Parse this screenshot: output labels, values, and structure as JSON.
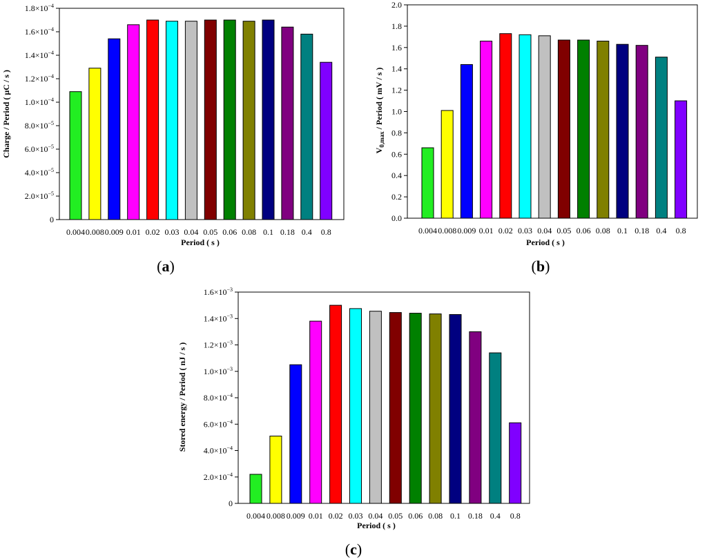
{
  "colors": [
    "#22ee22",
    "#ffff00",
    "#0000ff",
    "#ff00ff",
    "#ff0000",
    "#00ffff",
    "#c0c0c0",
    "#800000",
    "#008000",
    "#808000",
    "#000080",
    "#800080",
    "#008080",
    "#8000ff"
  ],
  "chart_data": [
    {
      "type": "bar",
      "panel_label": "a",
      "categories": [
        "0.004",
        "0.008",
        "0.009",
        "0.01",
        "0.02",
        "0.03",
        "0.04",
        "0.05",
        "0.06",
        "0.08",
        "0.1",
        "0.18",
        "0.4",
        "0.8"
      ],
      "values": [
        0.000109,
        0.000129,
        0.000154,
        0.000166,
        0.00017,
        0.000169,
        0.000169,
        0.00017,
        0.00017,
        0.000169,
        0.00017,
        0.000164,
        0.000158,
        0.000134
      ],
      "xlabel": "Period ( s )",
      "ylabel": "Charge / Period ( μC / s )",
      "ylim": [
        0,
        0.00018
      ],
      "yticks": [
        {
          "v": 0,
          "m": "0",
          "e": ""
        },
        {
          "v": 2e-05,
          "m": "2.0×10",
          "e": "−5"
        },
        {
          "v": 4e-05,
          "m": "4.0×10",
          "e": "−5"
        },
        {
          "v": 6e-05,
          "m": "6.0×10",
          "e": "−5"
        },
        {
          "v": 8e-05,
          "m": "8.0×10",
          "e": "−5"
        },
        {
          "v": 0.0001,
          "m": "1.0×10",
          "e": "−4"
        },
        {
          "v": 0.00012,
          "m": "1.2×10",
          "e": "−4"
        },
        {
          "v": 0.00014,
          "m": "1.4×10",
          "e": "−4"
        },
        {
          "v": 0.00016,
          "m": "1.6×10",
          "e": "−4"
        },
        {
          "v": 0.00018,
          "m": "1.8×10",
          "e": "−4"
        }
      ]
    },
    {
      "type": "bar",
      "panel_label": "b",
      "categories": [
        "0.004",
        "0.008",
        "0.009",
        "0.01",
        "0.02",
        "0.03",
        "0.04",
        "0.05",
        "0.06",
        "0.08",
        "0.1",
        "0.18",
        "0.4",
        "0.8"
      ],
      "values": [
        0.66,
        1.01,
        1.44,
        1.66,
        1.73,
        1.72,
        1.71,
        1.67,
        1.67,
        1.66,
        1.63,
        1.62,
        1.51,
        1.1
      ],
      "xlabel": "Period ( s )",
      "ylabel_main": "V",
      "ylabel_sub": "0,max",
      "ylabel_rest": " / Period ( mV / s )",
      "ylim": [
        0,
        2.0
      ],
      "yticks": [
        {
          "v": 0,
          "m": "0.0",
          "e": ""
        },
        {
          "v": 0.2,
          "m": "0.2",
          "e": ""
        },
        {
          "v": 0.4,
          "m": "0.4",
          "e": ""
        },
        {
          "v": 0.6,
          "m": "0.6",
          "e": ""
        },
        {
          "v": 0.8,
          "m": "0.8",
          "e": ""
        },
        {
          "v": 1.0,
          "m": "1.0",
          "e": ""
        },
        {
          "v": 1.2,
          "m": "1.2",
          "e": ""
        },
        {
          "v": 1.4,
          "m": "1.4",
          "e": ""
        },
        {
          "v": 1.6,
          "m": "1.6",
          "e": ""
        },
        {
          "v": 1.8,
          "m": "1.8",
          "e": ""
        },
        {
          "v": 2.0,
          "m": "2.0",
          "e": ""
        }
      ]
    },
    {
      "type": "bar",
      "panel_label": "c",
      "categories": [
        "0.004",
        "0.008",
        "0.009",
        "0.01",
        "0.02",
        "0.03",
        "0.04",
        "0.05",
        "0.06",
        "0.08",
        "0.1",
        "0.18",
        "0.4",
        "0.8"
      ],
      "values": [
        0.00022,
        0.00051,
        0.00105,
        0.00138,
        0.0015,
        0.001475,
        0.001455,
        0.001445,
        0.00144,
        0.001435,
        0.00143,
        0.0013,
        0.00114,
        0.00061
      ],
      "xlabel": "Period ( s )",
      "ylabel": "Stored energy / Period ( nJ / s )",
      "ylim": [
        0,
        0.0016
      ],
      "yticks": [
        {
          "v": 0,
          "m": "0",
          "e": ""
        },
        {
          "v": 0.0002,
          "m": "2.0×10",
          "e": "−4"
        },
        {
          "v": 0.0004,
          "m": "4.0×10",
          "e": "−4"
        },
        {
          "v": 0.0006,
          "m": "6.0×10",
          "e": "−4"
        },
        {
          "v": 0.0008,
          "m": "8.0×10",
          "e": "−4"
        },
        {
          "v": 0.001,
          "m": "1.0×10",
          "e": "−3"
        },
        {
          "v": 0.0012,
          "m": "1.2×10",
          "e": "−3"
        },
        {
          "v": 0.0014,
          "m": "1.4×10",
          "e": "−3"
        },
        {
          "v": 0.0016,
          "m": "1.6×10",
          "e": "−3"
        }
      ]
    }
  ]
}
